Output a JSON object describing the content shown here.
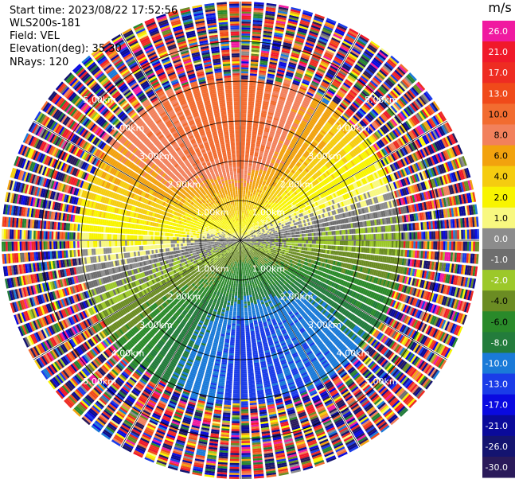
{
  "header": {
    "start_time": "Start time: 2023/08/22 17:52:56",
    "instrument": "WLS200s-181",
    "field": "Field: VEL",
    "elevation": "Elevation(deg): 35.30",
    "nrays": "NRays: 120"
  },
  "colorbar": {
    "unit": "m/s",
    "entries": [
      {
        "label": "26.0",
        "color": "#f01aa0"
      },
      {
        "label": "21.0",
        "color": "#f0192a"
      },
      {
        "label": "17.0",
        "color": "#ee2c22"
      },
      {
        "label": "13.0",
        "color": "#f04a1a"
      },
      {
        "label": "10.0",
        "color": "#f26c30"
      },
      {
        "label": "8.0",
        "color": "#f2815c"
      },
      {
        "label": "6.0",
        "color": "#f2a20e"
      },
      {
        "label": "4.0",
        "color": "#f5cc10"
      },
      {
        "label": "2.0",
        "color": "#f8f400"
      },
      {
        "label": "1.0",
        "color": "#f8f880"
      },
      {
        "label": "0.0",
        "color": "#8c8c8c"
      },
      {
        "label": "-1.0",
        "color": "#6e6e6e"
      },
      {
        "label": "-2.0",
        "color": "#9cc82a"
      },
      {
        "label": "-4.0",
        "color": "#6b8c23"
      },
      {
        "label": "-6.0",
        "color": "#2a8a2a"
      },
      {
        "label": "-8.0",
        "color": "#237c3c"
      },
      {
        "label": "-10.0",
        "color": "#1a7ad8"
      },
      {
        "label": "-13.0",
        "color": "#1a3ce8"
      },
      {
        "label": "-17.0",
        "color": "#0a0ae0"
      },
      {
        "label": "-21.0",
        "color": "#0a0a9a"
      },
      {
        "label": "-26.0",
        "color": "#141470"
      },
      {
        "label": "-30.0",
        "color": "#2a1a5a"
      }
    ]
  },
  "chart_data": {
    "type": "heatmap",
    "projection": "polar PPI (range rings in km)",
    "field": "VEL",
    "unit": "m/s",
    "nrays": 120,
    "range_rings_km": [
      1.0,
      2.0,
      3.0,
      4.0,
      5.0
    ],
    "ring_labels": [
      "1.00km",
      "2.00km",
      "3.00km",
      "4.00km",
      "5.00km"
    ],
    "max_range_km": 6.0,
    "valid_range_km": 4.1,
    "velocity_pattern": [
      {
        "azimuth_deg": 0,
        "speed_near": 1.5,
        "speed_far": 12.0
      },
      {
        "azimuth_deg": 45,
        "speed_near": 1.5,
        "speed_far": 5.0
      },
      {
        "azimuth_deg": 90,
        "speed_near": 0.0,
        "speed_far": -1.5
      },
      {
        "azimuth_deg": 135,
        "speed_near": -1.5,
        "speed_far": -9.0
      },
      {
        "azimuth_deg": 180,
        "speed_near": -2.0,
        "speed_far": -11.0
      },
      {
        "azimuth_deg": 225,
        "speed_near": -1.5,
        "speed_far": -5.0
      },
      {
        "azimuth_deg": 270,
        "speed_near": 0.0,
        "speed_far": 2.0
      },
      {
        "azimuth_deg": 315,
        "speed_near": 1.5,
        "speed_far": 9.0
      }
    ],
    "beyond_valid_range": "noise (random velocities)"
  }
}
